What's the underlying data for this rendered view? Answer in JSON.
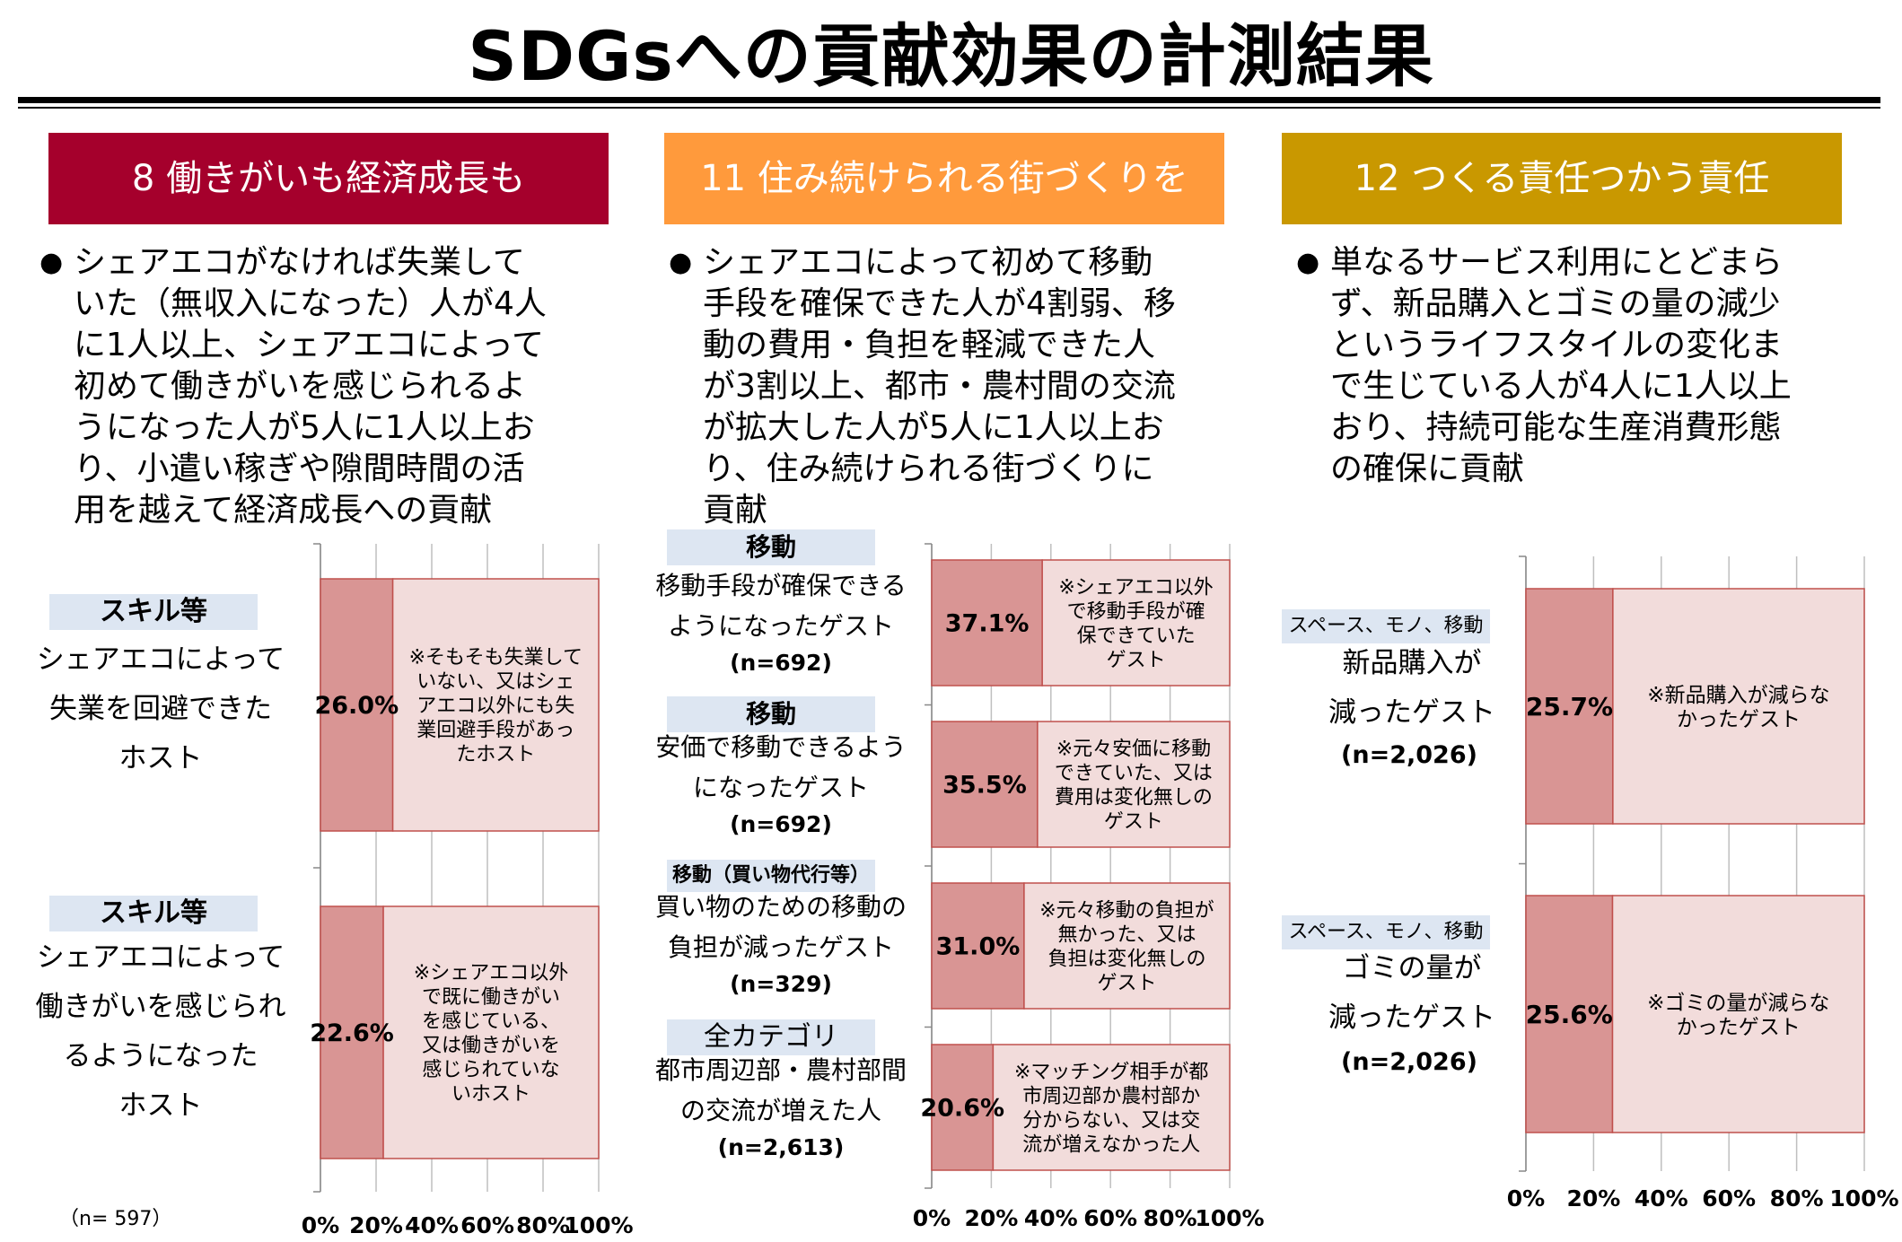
{
  "title": "SDGsへの貢献効果の計測結果",
  "colors": {
    "bar_value": "#d99594",
    "bar_rest": "#f2dcdb",
    "hdr1": "#a5002c",
    "hdr2": "#ff9a3c",
    "hdr3": "#c99800"
  },
  "sections": [
    {
      "header": "8 働きがいも経済成長も",
      "bullet": "シェアエコがなければ失業して\nいた（無収入になった）人が4人\nに1人以上、シェアエコによって\n初めて働きがいを感じられるよ\nうになった人が5人に1人以上お\nり、小遣い稼ぎや隙間時間の活\n用を越えて経済成長への貢献",
      "items": [
        {
          "category": "スキル等",
          "label": "シェアエコによって\n失業を回避できた\nホスト",
          "n": "",
          "value_label": "26.0%",
          "rest_label": "※そもそも失業して\nいない、又はシェ\nアエコ以外にも失\n業回避手段があっ\nたホスト"
        },
        {
          "category": "スキル等",
          "label": "シェアエコによって\n働きがいを感じられ\nるようになった\nホスト",
          "n": "",
          "value_label": "22.6%",
          "rest_label": "※シェアエコ以外\nで既に働きがい\nを感じている、\n又は働きがいを\n感じられていな\nいホスト"
        }
      ],
      "footnote": "（n= 597）",
      "ticks": [
        "0%",
        "20%",
        "40%",
        "60%",
        "80%",
        "100%"
      ]
    },
    {
      "header": "11 住み続けられる街づくりを",
      "bullet": "シェアエコによって初めて移動\n手段を確保できた人が4割弱、移\n動の費用・負担を軽減できた人\nが3割以上、都市・農村間の交流\nが拡大した人が5人に1人以上お\nり、住み続けられる街づくりに\n貢献",
      "items": [
        {
          "category": "移動",
          "label": "移動手段が確保できる\nようになったゲスト",
          "n": "(n=692)",
          "value_label": "37.1%",
          "rest_label": "※シェアエコ以外\nで移動手段が確\n保できていた\nゲスト"
        },
        {
          "category": "移動",
          "label": "安価で移動できるよう\nになったゲスト",
          "n": "(n=692)",
          "value_label": "35.5%",
          "rest_label": "※元々安価に移動\nできていた、又は\n費用は変化無しの\nゲスト"
        },
        {
          "category": "移動（買い物代行等）",
          "label": "買い物のための移動の\n負担が減ったゲスト",
          "n": "(n=329)",
          "value_label": "31.0%",
          "rest_label": "※元々移動の負担が\n無かった、又は\n負担は変化無しの\nゲスト"
        },
        {
          "category": "全カテゴリ",
          "label": "都市周辺部・農村部間\nの交流が増えた人",
          "n": "(n=2,613)",
          "value_label": "20.6%",
          "rest_label": "※マッチング相手が都\n市周辺部か農村部か\n分からない、又は交\n流が増えなかった人"
        }
      ],
      "ticks": [
        "0%",
        "20%",
        "40%",
        "60%",
        "80%",
        "100%"
      ]
    },
    {
      "header": "12 つくる責任つかう責任",
      "bullet": "単なるサービス利用にとどまら\nず、新品購入とゴミの量の減少\nというライフスタイルの変化ま\nで生じている人が4人に1人以上\nおり、持続可能な生産消費形態\nの確保に貢献",
      "items": [
        {
          "category": "スペース、モノ、移動",
          "label": "新品購入が\n減ったゲスト",
          "n": "(n=2,026)",
          "value_label": "25.7%",
          "rest_label": "※新品購入が減らな\nかったゲスト"
        },
        {
          "category": "スペース、モノ、移動",
          "label": "ゴミの量が\n減ったゲスト",
          "n": "(n=2,026)",
          "value_label": "25.6%",
          "rest_label": "※ゴミの量が減らな\nかったゲスト"
        }
      ],
      "ticks": [
        "0%",
        "20%",
        "40%",
        "60%",
        "80%",
        "100%"
      ]
    }
  ],
  "chart_data": [
    {
      "type": "bar",
      "orientation": "horizontal",
      "stacked": true,
      "xlim": [
        0,
        100
      ],
      "unit": "%",
      "categories": [
        "シェアエコによって失業を回避できたホスト",
        "シェアエコによって働きがいを感じられるようになったホスト"
      ],
      "values": [
        26.0,
        22.6
      ],
      "grid": true
    },
    {
      "type": "bar",
      "orientation": "horizontal",
      "stacked": true,
      "xlim": [
        0,
        100
      ],
      "unit": "%",
      "categories": [
        "移動手段が確保できるようになったゲスト",
        "安価で移動できるようになったゲスト",
        "買い物のための移動の負担が減ったゲスト",
        "都市周辺部・農村部間の交流が増えた人"
      ],
      "values": [
        37.1,
        35.5,
        31.0,
        20.6
      ],
      "grid": true
    },
    {
      "type": "bar",
      "orientation": "horizontal",
      "stacked": true,
      "xlim": [
        0,
        100
      ],
      "unit": "%",
      "categories": [
        "新品購入が減ったゲスト",
        "ゴミの量が減ったゲスト"
      ],
      "values": [
        25.7,
        25.6
      ],
      "grid": true
    }
  ]
}
